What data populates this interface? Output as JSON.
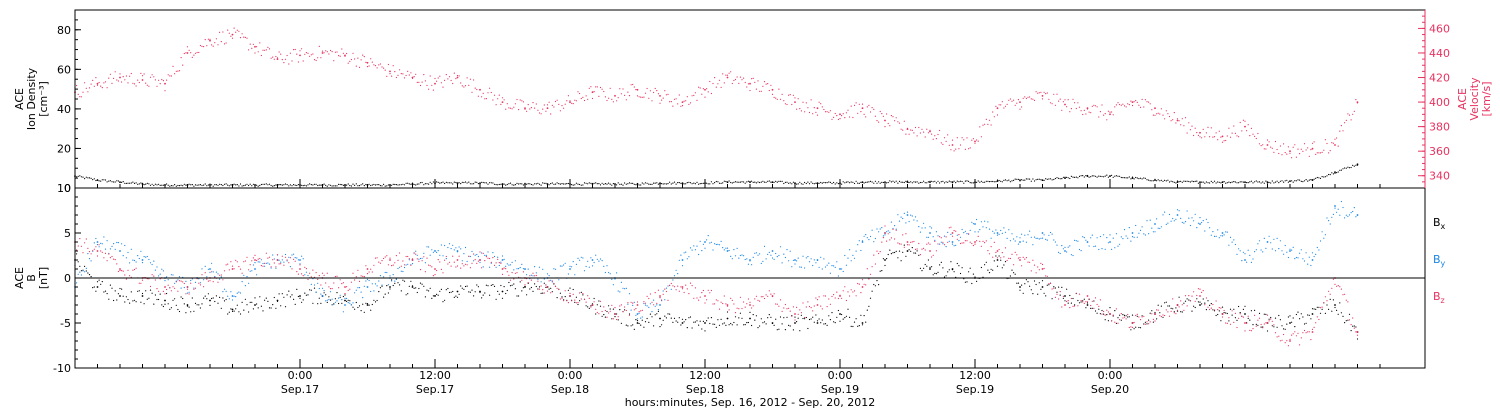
{
  "chart_data": [
    {
      "type": "scatter",
      "panel": "top",
      "ylabel_lines": [
        "ACE",
        "Ion Density",
        "[cm⁻³]"
      ],
      "y2label_lines": [
        "ACE",
        "Velocity",
        "[km/s]"
      ],
      "ylim": [
        0,
        90
      ],
      "y2lim": [
        330,
        475
      ],
      "yticks": [
        0,
        20,
        40,
        60,
        80
      ],
      "y2ticks": [
        340,
        360,
        380,
        400,
        420,
        440,
        460
      ],
      "y2_color": "#e8325f",
      "series": [
        {
          "name": "Ion Density",
          "axis": "left",
          "color": "#000000",
          "x": [
            -20,
            -18,
            -16,
            -14,
            -12,
            -10,
            -8,
            -6,
            -4,
            -2,
            0,
            2,
            4,
            6,
            8,
            10,
            12,
            14,
            16,
            18,
            20,
            22,
            24,
            26,
            28,
            30,
            32,
            34,
            36,
            38,
            40,
            42,
            44,
            46,
            48,
            50,
            52,
            54,
            56,
            58,
            60,
            62,
            64,
            66,
            68,
            70,
            72,
            74,
            76,
            78,
            80,
            82,
            84,
            86,
            88,
            90,
            92,
            94
          ],
          "y": [
            6,
            4,
            3,
            2,
            1.5,
            1.5,
            1.5,
            1.5,
            1.5,
            1.5,
            1.5,
            1.5,
            1.5,
            1.5,
            1.5,
            2,
            2.5,
            2.5,
            2.5,
            2,
            2,
            2,
            2,
            2,
            2,
            2,
            2.5,
            2.5,
            2.5,
            3,
            3,
            3,
            2.5,
            2.5,
            2.5,
            3,
            3,
            3,
            3,
            3,
            3,
            3.5,
            4,
            4,
            5,
            6,
            6,
            5,
            4,
            3,
            3,
            3,
            3,
            3,
            3.5,
            4,
            8,
            12
          ]
        },
        {
          "name": "Velocity",
          "axis": "right",
          "color": "#e8325f",
          "x": [
            -20,
            -18,
            -16,
            -14,
            -12,
            -10,
            -8,
            -6,
            -4,
            -2,
            0,
            2,
            4,
            6,
            8,
            10,
            12,
            14,
            16,
            18,
            20,
            22,
            24,
            26,
            28,
            30,
            32,
            34,
            36,
            38,
            40,
            42,
            44,
            46,
            48,
            50,
            52,
            54,
            56,
            58,
            60,
            62,
            64,
            66,
            68,
            70,
            72,
            74,
            76,
            78,
            80,
            82,
            84,
            86,
            88,
            90,
            92,
            94
          ],
          "y": [
            408,
            415,
            420,
            418,
            415,
            440,
            450,
            455,
            445,
            435,
            438,
            440,
            438,
            432,
            425,
            420,
            415,
            420,
            410,
            400,
            395,
            395,
            400,
            408,
            405,
            410,
            405,
            400,
            410,
            420,
            415,
            410,
            400,
            395,
            390,
            395,
            385,
            378,
            376,
            365,
            368,
            395,
            400,
            405,
            398,
            395,
            390,
            400,
            395,
            385,
            375,
            372,
            380,
            365,
            360,
            362,
            365,
            400
          ]
        }
      ]
    },
    {
      "type": "scatter",
      "panel": "bottom",
      "ylabel_lines": [
        "ACE",
        "B",
        "[nT]"
      ],
      "ylim": [
        -10,
        10
      ],
      "yticks": [
        -10,
        -5,
        0,
        5,
        10
      ],
      "zero_line": true,
      "legend_position": "right",
      "series": [
        {
          "name": "Bx",
          "label_main": "B",
          "label_sub": "x",
          "color": "#000000",
          "x": [
            -20,
            -18,
            -16,
            -14,
            -12,
            -10,
            -8,
            -6,
            -4,
            -2,
            0,
            2,
            4,
            6,
            8,
            10,
            12,
            14,
            16,
            18,
            20,
            22,
            24,
            26,
            28,
            30,
            32,
            34,
            36,
            38,
            40,
            42,
            44,
            46,
            48,
            50,
            52,
            54,
            56,
            58,
            60,
            62,
            64,
            66,
            68,
            70,
            72,
            74,
            76,
            78,
            80,
            82,
            84,
            86,
            88,
            90,
            92,
            94
          ],
          "y": [
            2,
            -1,
            -2,
            -2,
            -2.5,
            -3,
            -2.5,
            -3.5,
            -3,
            -2.5,
            -2,
            -2,
            -2.5,
            -3,
            -1,
            -1,
            -2,
            -1.5,
            -1.5,
            -1.5,
            -1,
            -1,
            -2,
            -3,
            -4,
            -5,
            -4.5,
            -5,
            -5,
            -4.5,
            -4.5,
            -5,
            -5,
            -5,
            -4,
            -5,
            2,
            3,
            1,
            1,
            0,
            2,
            -1,
            -1,
            -2,
            -3,
            -4,
            -5,
            -4,
            -3,
            -3,
            -4,
            -4,
            -5,
            -5,
            -4,
            -3,
            -6
          ]
        },
        {
          "name": "By",
          "label_main": "B",
          "label_sub": "y",
          "color": "#1a86e6",
          "x": [
            -20,
            -18,
            -16,
            -14,
            -12,
            -10,
            -8,
            -6,
            -4,
            -2,
            0,
            2,
            4,
            6,
            8,
            10,
            12,
            14,
            16,
            18,
            20,
            22,
            24,
            26,
            28,
            30,
            32,
            34,
            36,
            38,
            40,
            42,
            44,
            46,
            48,
            50,
            52,
            54,
            56,
            58,
            60,
            62,
            64,
            66,
            68,
            70,
            72,
            74,
            76,
            78,
            80,
            82,
            84,
            86,
            88,
            90,
            92,
            94
          ],
          "y": [
            -1,
            4,
            3,
            2,
            0,
            -1,
            1,
            -2,
            1,
            2,
            2,
            -2,
            -3,
            -1,
            0,
            2,
            3,
            3,
            2,
            2,
            1,
            0,
            1,
            2,
            0,
            -4,
            -3,
            2,
            4,
            3,
            2,
            3,
            2,
            2,
            1,
            4,
            5,
            7,
            5,
            4,
            6,
            5,
            4,
            5,
            3,
            4,
            4,
            5,
            6,
            7,
            6,
            5,
            2,
            4,
            3,
            2,
            8,
            7
          ]
        },
        {
          "name": "Bz",
          "label_main": "B",
          "label_sub": "z",
          "color": "#e8325f",
          "x": [
            -20,
            -18,
            -16,
            -14,
            -12,
            -10,
            -8,
            -6,
            -4,
            -2,
            0,
            2,
            4,
            6,
            8,
            10,
            12,
            14,
            16,
            18,
            20,
            22,
            24,
            26,
            28,
            30,
            32,
            34,
            36,
            38,
            40,
            42,
            44,
            46,
            48,
            50,
            52,
            54,
            56,
            58,
            60,
            62,
            64,
            66,
            68,
            70,
            72,
            74,
            76,
            78,
            80,
            82,
            84,
            86,
            88,
            90,
            92,
            94
          ],
          "y": [
            4,
            3,
            1,
            0,
            -1,
            -1,
            0,
            1,
            2,
            2,
            1,
            0,
            -1,
            1,
            2,
            2,
            1,
            2,
            2,
            1,
            0,
            -1,
            -2,
            -3,
            -4,
            -3,
            -2,
            -1,
            -2,
            -3,
            -3,
            -2,
            -4,
            -3,
            -2,
            -1,
            5,
            4,
            3,
            5,
            4,
            3,
            2,
            1,
            -3,
            -2,
            -4,
            -5,
            -4,
            -3,
            -2,
            -4,
            -5,
            -5,
            -7,
            -6,
            0,
            -6
          ]
        }
      ]
    }
  ],
  "x_axis": {
    "xlim": [
      -20,
      100
    ],
    "ticks": [
      {
        "x": 0,
        "time": "0:00",
        "date": "Sep.17"
      },
      {
        "x": 12,
        "time": "12:00",
        "date": "Sep.17"
      },
      {
        "x": 24,
        "time": "0:00",
        "date": "Sep.18"
      },
      {
        "x": 36,
        "time": "12:00",
        "date": "Sep.18"
      },
      {
        "x": 48,
        "time": "0:00",
        "date": "Sep.19"
      },
      {
        "x": 60,
        "time": "12:00",
        "date": "Sep.19"
      },
      {
        "x": 72,
        "time": "0:00",
        "date": "Sep.20"
      }
    ],
    "label": "hours:minutes, Sep. 16, 2012 - Sep. 20, 2012"
  }
}
